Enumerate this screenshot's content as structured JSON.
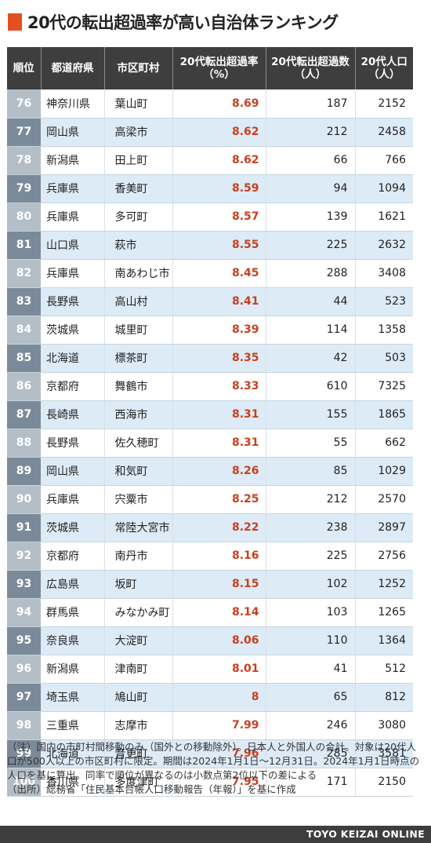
{
  "title": "20代の転出超過率が高い自治体ランキング",
  "colors": {
    "accent": "#e3501f",
    "header_bg": "#3e3e3e",
    "row_alt_bg": "#ddebf7",
    "rate_text": "#c9401d",
    "rank_bg_light": "#b3bec7",
    "rank_bg_dark": "#7b8a98"
  },
  "table": {
    "headers": [
      "順位",
      "都道府県",
      "市区町村",
      "20代転出超過率\n（%）",
      "20代転出超過数\n（人）",
      "20代人口\n（人）"
    ],
    "rows": [
      [
        "76",
        "神奈川県",
        "葉山町",
        "8.69",
        "187",
        "2152"
      ],
      [
        "77",
        "岡山県",
        "高梁市",
        "8.62",
        "212",
        "2458"
      ],
      [
        "78",
        "新潟県",
        "田上町",
        "8.62",
        "66",
        "766"
      ],
      [
        "79",
        "兵庫県",
        "香美町",
        "8.59",
        "94",
        "1094"
      ],
      [
        "80",
        "兵庫県",
        "多可町",
        "8.57",
        "139",
        "1621"
      ],
      [
        "81",
        "山口県",
        "萩市",
        "8.55",
        "225",
        "2632"
      ],
      [
        "82",
        "兵庫県",
        "南あわじ市",
        "8.45",
        "288",
        "3408"
      ],
      [
        "83",
        "長野県",
        "高山村",
        "8.41",
        "44",
        "523"
      ],
      [
        "84",
        "茨城県",
        "城里町",
        "8.39",
        "114",
        "1358"
      ],
      [
        "85",
        "北海道",
        "標茶町",
        "8.35",
        "42",
        "503"
      ],
      [
        "86",
        "京都府",
        "舞鶴市",
        "8.33",
        "610",
        "7325"
      ],
      [
        "87",
        "長崎県",
        "西海市",
        "8.31",
        "155",
        "1865"
      ],
      [
        "88",
        "長野県",
        "佐久穂町",
        "8.31",
        "55",
        "662"
      ],
      [
        "89",
        "岡山県",
        "和気町",
        "8.26",
        "85",
        "1029"
      ],
      [
        "90",
        "兵庫県",
        "宍粟市",
        "8.25",
        "212",
        "2570"
      ],
      [
        "91",
        "茨城県",
        "常陸大宮市",
        "8.22",
        "238",
        "2897"
      ],
      [
        "92",
        "京都府",
        "南丹市",
        "8.16",
        "225",
        "2756"
      ],
      [
        "93",
        "広島県",
        "坂町",
        "8.15",
        "102",
        "1252"
      ],
      [
        "94",
        "群馬県",
        "みなかみ町",
        "8.14",
        "103",
        "1265"
      ],
      [
        "95",
        "奈良県",
        "大淀町",
        "8.06",
        "110",
        "1364"
      ],
      [
        "96",
        "新潟県",
        "津南町",
        "8.01",
        "41",
        "512"
      ],
      [
        "97",
        "埼玉県",
        "鳩山町",
        "8",
        "65",
        "812"
      ],
      [
        "98",
        "三重県",
        "志摩市",
        "7.99",
        "246",
        "3080"
      ],
      [
        "99",
        "北海道",
        "音更町",
        "7.96",
        "285",
        "3581"
      ],
      [
        "100",
        "香川県",
        "多度津町",
        "7.95",
        "171",
        "2150"
      ]
    ]
  },
  "notes": [
    "（注）国内の市町村間移動のみ（国外との移動除外）。日本人と外国人の合計。対象は20代人口が500人以上の市区町村に限定。期間は2024年1月1日～12月31日。2024年1月1日時点の人口を基に算出。同率で順位が異なるのは小数点第2位以下の差による",
    "（出所）総務省「住民基本台帳人口移動報告（年報）」を基に作成"
  ],
  "footer": "TOYO KEIZAI ONLINE"
}
